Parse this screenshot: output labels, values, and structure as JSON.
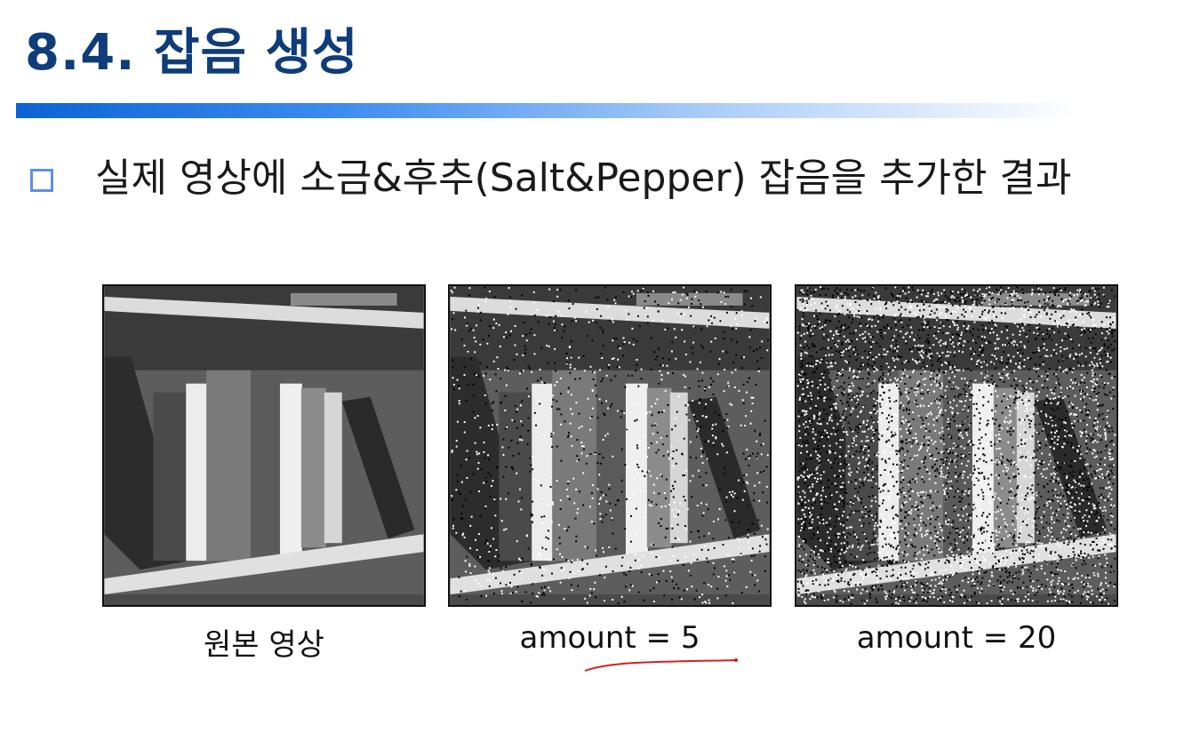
{
  "slide": {
    "title": "8.4. 잡음 생성",
    "bullet_text": "실제 영상에 소금&후추(Salt&Pepper) 잡음을 추가한 결과"
  },
  "figures": [
    {
      "caption": "원본 영상",
      "noise_amount": 0
    },
    {
      "caption": "amount = 5",
      "noise_amount": 5
    },
    {
      "caption": "amount = 20",
      "noise_amount": 20
    }
  ],
  "colors": {
    "title": "#0f3d7a",
    "title_bar_start": "#0b63d6",
    "bullet": "#5b8fe8",
    "annotation_ink": "#d42020"
  },
  "icons": [
    "square-bullet-icon"
  ]
}
